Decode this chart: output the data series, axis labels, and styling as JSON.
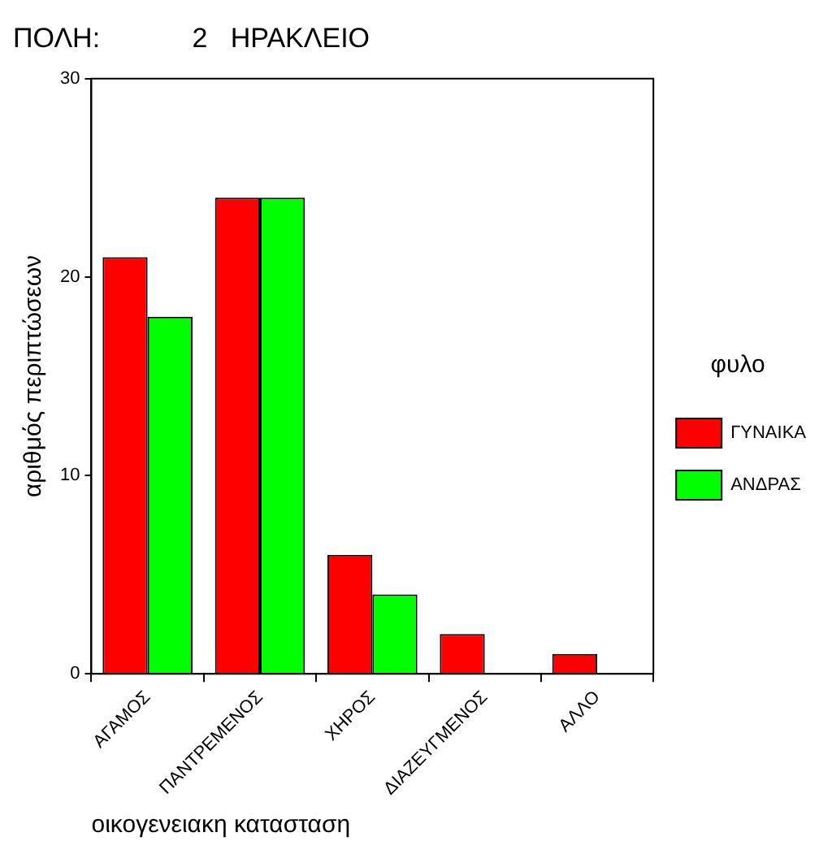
{
  "chart_data": {
    "type": "bar",
    "title": "ΠΟΛΗ:            2   ΗΡΑΚΛΕΙΟ",
    "xlabel": "οικογενειακη κατασταση",
    "ylabel": "αριθμός περιπτώσεων",
    "legend_title": "φυλο",
    "categories": [
      "ΑΓΑΜΟΣ",
      "ΠΑΝΤΡΕΜΕΝΟΣ",
      "ΧΗΡΟΣ",
      "ΔΙΑΖΕΥΓΜΕΝΟΣ",
      "ΑΛΛΟ"
    ],
    "series": [
      {
        "name": "ΓΥΝΑΙΚΑ",
        "color": "#ff0000",
        "values": [
          21,
          24,
          6,
          2,
          1
        ]
      },
      {
        "name": "ΑΝΔΡΑΣ",
        "color": "#00ff00",
        "values": [
          18,
          24,
          4,
          0,
          0
        ]
      }
    ],
    "ylim": [
      0,
      30
    ],
    "yticks": [
      0,
      10,
      20,
      30
    ],
    "grid": false,
    "legend": "right"
  }
}
